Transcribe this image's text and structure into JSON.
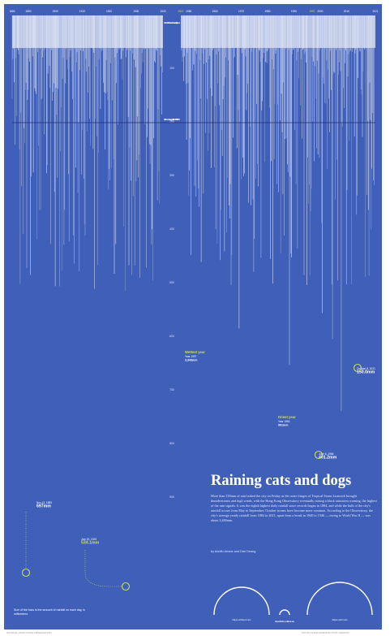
{
  "colors": {
    "background": "#3f5fb8",
    "bars": "#ffffff",
    "highlight": "#c8e05a",
    "text": "#ffffff",
    "muted_text": "#dfe6fa"
  },
  "headline": "Raining cats and dogs",
  "body": "More than 150mm of rain lashed the city on Friday as the outer fringes of Tropical Storm Lionrock brought thunderstorms and high winds, with the Hong Kong Observatory eventually raising a black rainstorm warning, the highest of the rain signals. It was the eighth highest daily rainfall since records began in 1884, and while the bulk of the city's rainfall occurs from May to September, October storms have become more common. According to the Observatory, the city's average yearly rainfall from 1884 to 2021, apart from a break in 1940 to 1946 — owing to World War II — was about 2,400mm.",
  "byline": "by Adolfo Arranz and Dan Deang",
  "footnote": "Size of the bars is the amount of rainfall on each day, in millimetres",
  "credits": {
    "left": "SOURCE: HONG KONG OBSERVATORY",
    "right": "SOUTH CHINA MORNING POST GRAPHIC"
  },
  "chart_data": {
    "type": "bar",
    "title": "Raining cats and dogs",
    "x_axis": {
      "labels": [
        "1884",
        "1890",
        "1900",
        "1910",
        "1920",
        "1930",
        "1940",
        "1947",
        "1950",
        "1960",
        "1970",
        "1980",
        "1990",
        "1997",
        "2000",
        "2010",
        "2021"
      ],
      "gap_label": "1940–1946 No records were kept during the war"
    },
    "y_axis": {
      "direction": "downward",
      "labels": [
        "100",
        "200",
        "300",
        "400",
        "500",
        "600",
        "700",
        "800",
        "900"
      ],
      "reference_line": {
        "value": 200,
        "label": "2,400mm Average yearly rainfall from 1884 to 2021"
      }
    },
    "annotations": [
      {
        "label": "Wettest year",
        "date_label": "Year 1997",
        "value_label": "3,343mm"
      },
      {
        "label": "Driest year",
        "date_label": "Year 1963",
        "value_label": "901mm"
      },
      {
        "label": "",
        "date_label": "June 6, 1966",
        "value_label": "401.2mm"
      },
      {
        "label": "",
        "date_label": "Nov 13, 1889",
        "value_label": "697mm"
      },
      {
        "label": "",
        "date_label": "July 19, 1926",
        "value_label": "534.1mm"
      },
      {
        "label": "",
        "date_label": "October 8, 2021",
        "value_label": "150.0mm"
      }
    ],
    "legend_arcs": [
      {
        "label": "Days without rain"
      },
      {
        "label": "Days with rain"
      },
      {
        "label": "Days with 100mm of rain or more"
      }
    ]
  }
}
